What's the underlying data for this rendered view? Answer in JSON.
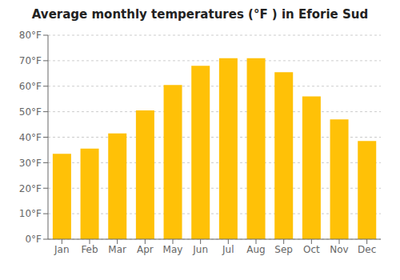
{
  "chart_data": {
    "type": "bar",
    "title": "Average monthly temperatures (°F ) in Eforie Sud",
    "categories": [
      "Jan",
      "Feb",
      "Mar",
      "Apr",
      "May",
      "Jun",
      "Jul",
      "Aug",
      "Sep",
      "Oct",
      "Nov",
      "Dec"
    ],
    "values": [
      33.5,
      35.5,
      41.5,
      50.5,
      60.5,
      68.0,
      71.0,
      71.0,
      65.5,
      56.0,
      47.0,
      38.5
    ],
    "color": "#FFC107",
    "ylim": [
      0,
      80
    ],
    "yticks": [
      {
        "value": 0,
        "label": "0°F"
      },
      {
        "value": 10,
        "label": "10°F"
      },
      {
        "value": 20,
        "label": "20°F"
      },
      {
        "value": 30,
        "label": "30°F"
      },
      {
        "value": 40,
        "label": "40°F"
      },
      {
        "value": 50,
        "label": "50°F"
      },
      {
        "value": 60,
        "label": "60°F"
      },
      {
        "value": 70,
        "label": "70°F"
      },
      {
        "value": 80,
        "label": "80°F"
      }
    ],
    "grid": true
  }
}
